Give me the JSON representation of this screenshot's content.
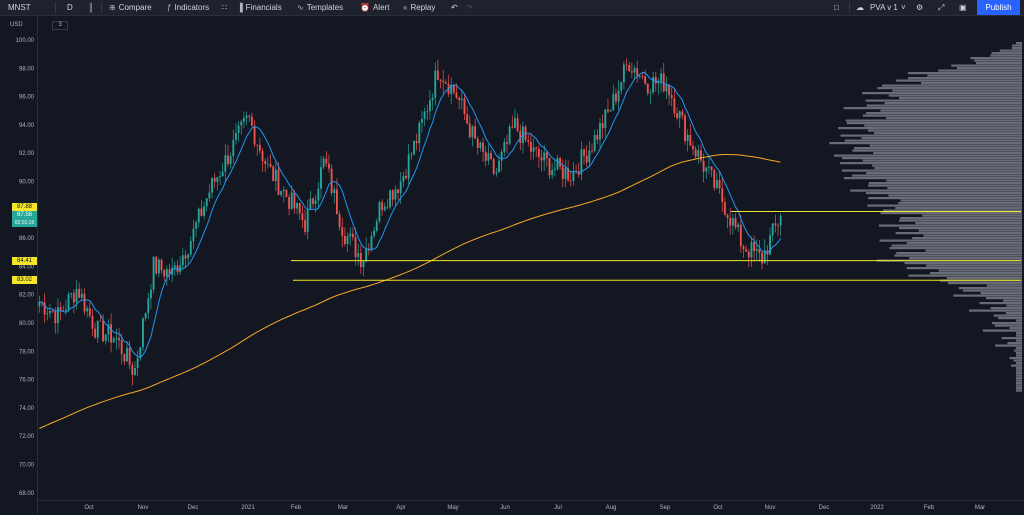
{
  "toolbar": {
    "symbol": "MNST",
    "interval": "D",
    "compare": "Compare",
    "indicators": "Indicators",
    "financials": "Financials",
    "templates": "Templates",
    "alert": "Alert",
    "replay": "Replay",
    "layout_name": "PVA v 1",
    "publish": "Publish"
  },
  "currency": "USD",
  "indicator_count": "3",
  "price_tags": {
    "level_upper": "87.88",
    "last_price": "87.58",
    "countdown": "02:01:15",
    "level_mid": "84.41",
    "level_low": "83.02"
  },
  "colors": {
    "up": "#26a69a",
    "down": "#ef5350",
    "sma_fast": "#2196f3",
    "sma_slow": "#f9a825",
    "levels": "#f5e52a",
    "volume_profile": "#787b86",
    "last_price_tag": "#26a69a"
  },
  "chart_data": {
    "type": "candlestick",
    "symbol": "MNST",
    "timeframe": "D",
    "ylim": [
      68,
      100.5
    ],
    "y_ticks": [
      "100.00",
      "98.00",
      "96.00",
      "94.00",
      "92.00",
      "90.00",
      "88.00",
      "86.00",
      "84.00",
      "82.00",
      "80.00",
      "78.00",
      "76.00",
      "74.00",
      "72.00",
      "70.00",
      "68.00"
    ],
    "x_ticks": [
      "Oct",
      "Nov",
      "Dec",
      "2021",
      "Feb",
      "Mar",
      "Apr",
      "May",
      "Jun",
      "Jul",
      "Aug",
      "Sep",
      "Oct",
      "Nov",
      "Dec",
      "2022",
      "Feb",
      "Mar"
    ],
    "price_anchors": [
      [
        "Oct",
        81.5
      ],
      [
        "Oct",
        80.5
      ],
      [
        "Oct",
        82.5
      ],
      [
        "Oct",
        79.5
      ],
      [
        "Nov",
        79.0
      ],
      [
        "Nov",
        76.5
      ],
      [
        "Nov",
        84.0
      ],
      [
        "Nov",
        83.5
      ],
      [
        "Dec",
        86.0
      ],
      [
        "Dec",
        89.5
      ],
      [
        "Dec",
        92.0
      ],
      [
        "2021",
        94.5
      ],
      [
        "2021",
        91.0
      ],
      [
        "Feb",
        89.0
      ],
      [
        "Feb",
        87.0
      ],
      [
        "Feb",
        91.5
      ],
      [
        "Mar",
        86.5
      ],
      [
        "Mar",
        84.5
      ],
      [
        "Mar",
        88.5
      ],
      [
        "Apr",
        90.0
      ],
      [
        "Apr",
        93.5
      ],
      [
        "Apr",
        98.0
      ],
      [
        "May",
        96.0
      ],
      [
        "May",
        92.5
      ],
      [
        "May",
        90.5
      ],
      [
        "Jun",
        94.0
      ],
      [
        "Jun",
        92.0
      ],
      [
        "Jul",
        91.0
      ],
      [
        "Jul",
        90.5
      ],
      [
        "Jul",
        92.5
      ],
      [
        "Aug",
        95.0
      ],
      [
        "Aug",
        98.5
      ],
      [
        "Aug",
        97.0
      ],
      [
        "Sep",
        97.0
      ],
      [
        "Sep",
        93.5
      ],
      [
        "Sep",
        91.0
      ],
      [
        "Oct",
        88.5
      ],
      [
        "Oct",
        85.5
      ],
      [
        "Nov",
        84.5
      ],
      [
        "Nov",
        87.6
      ]
    ],
    "levels": [
      {
        "value": 87.88
      },
      {
        "value": 84.41
      },
      {
        "value": 83.02
      }
    ],
    "last_price": 87.58,
    "volume_profile": "right side, gray histogram",
    "grid": false
  }
}
